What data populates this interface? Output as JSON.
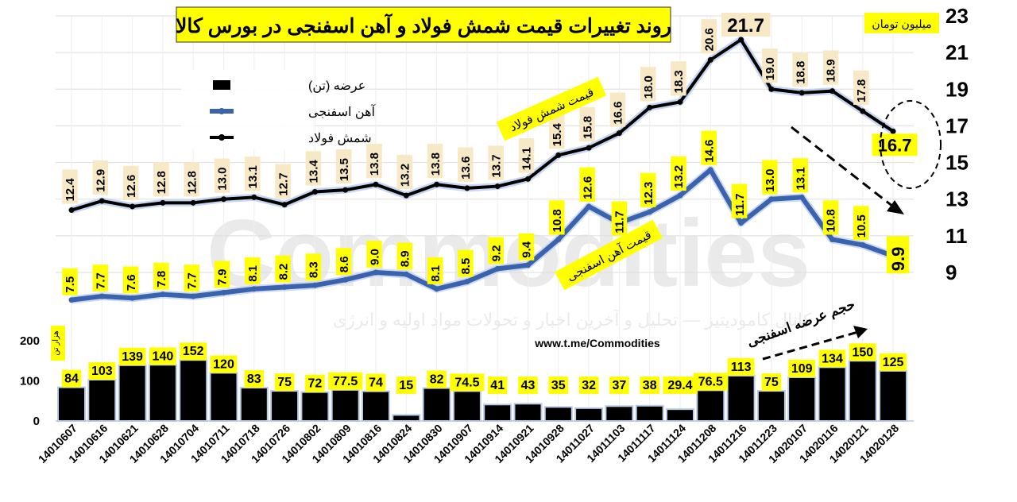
{
  "header": {
    "title": "روند تغییرات قیمت شمش فولاد و آهن اسفنجی در بورس کالا",
    "unit_label": "میلیون تومان",
    "bar_unit_label": "هزار تن",
    "url": "www.t.me/Commodities",
    "watermark": "Commodities",
    "watermark_sub": "کانال کامودیتیز — تحلیل و آخرین اخبار و تحولات مواد اولیه و انرژی",
    "annotation_billet": "قیمت شمش فولاد",
    "annotation_sponge": "قیمت آهن اسفنجی",
    "annotation_volume": "حجم عرضه اسفنجی"
  },
  "chart_data": {
    "type": "bar+line",
    "categories": [
      "14010607",
      "14010616",
      "14010621",
      "14010628",
      "14010704",
      "14010711",
      "14010718",
      "14010726",
      "14010802",
      "14010809",
      "14010816",
      "14010824",
      "14010830",
      "14010907",
      "14010914",
      "14010921",
      "14010928",
      "14011027",
      "14011103",
      "14011117",
      "14011124",
      "14011208",
      "14011216",
      "14011223",
      "14020107",
      "14020116",
      "14020121",
      "14020128"
    ],
    "bar_series": {
      "name": "عرضه (تن)",
      "values": [
        84,
        103,
        139,
        140,
        152,
        120,
        83,
        75,
        72,
        77.5,
        74,
        15,
        82,
        74.5,
        41,
        43,
        35,
        32,
        37,
        38,
        29.4,
        76.5,
        113,
        75,
        109,
        134,
        150,
        125
      ],
      "color": "#000000"
    },
    "line_series": [
      {
        "name": "آهن اسفنجی",
        "values": [
          7.5,
          7.7,
          7.6,
          7.8,
          7.7,
          7.9,
          8.1,
          8.2,
          8.3,
          8.6,
          9.0,
          8.9,
          8.1,
          8.5,
          9.2,
          9.4,
          10.8,
          12.6,
          11.7,
          12.3,
          13.2,
          14.6,
          11.7,
          13.0,
          13.1,
          10.8,
          10.5,
          9.9
        ],
        "color": "#3b63ad"
      },
      {
        "name": "شمش فولاد",
        "values": [
          12.4,
          12.9,
          12.6,
          12.8,
          12.8,
          13.0,
          13.1,
          12.7,
          13.4,
          13.5,
          13.8,
          13.2,
          13.8,
          13.6,
          13.7,
          14.1,
          15.4,
          15.8,
          16.6,
          18.0,
          18.3,
          20.6,
          21.7,
          19.0,
          18.8,
          18.9,
          17.8,
          16.7
        ],
        "color": "#000000"
      }
    ],
    "bar_axis": {
      "ticks": [
        "0",
        "100",
        "200"
      ],
      "range": [
        0,
        230
      ]
    },
    "price_axis": {
      "ticks": [
        "9",
        "11",
        "13",
        "15",
        "17",
        "19",
        "21",
        "23"
      ],
      "range": [
        7,
        23
      ],
      "side": "right"
    },
    "legend": {
      "position": "top-left-inner"
    },
    "grid": true,
    "colors": {
      "title_bg": "#ffff00",
      "label_bg": "#f7e9c6",
      "highlight_bg": "#ffff00",
      "grid": "#dddddd"
    }
  }
}
